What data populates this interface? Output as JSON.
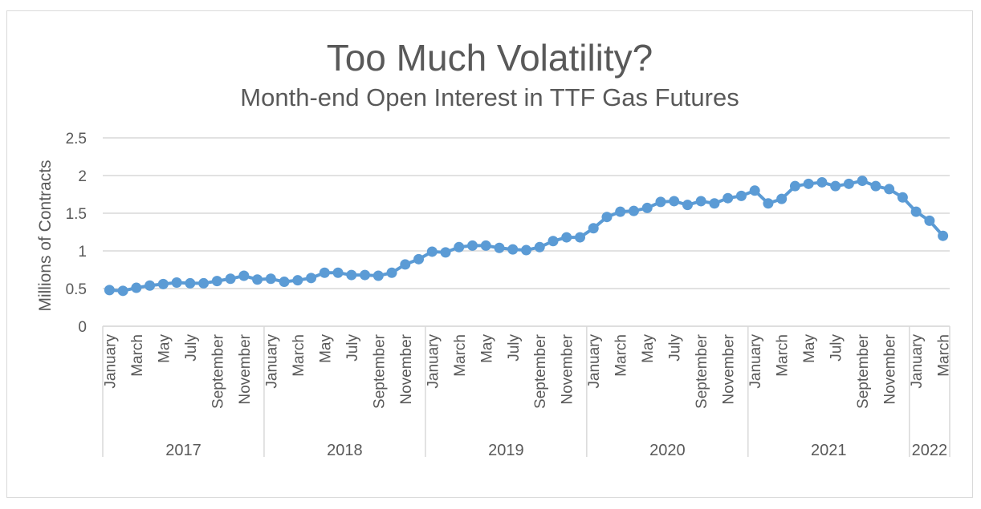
{
  "chart_data": {
    "type": "line",
    "title": "Too Much Volatility?",
    "subtitle": "Month-end Open Interest in TTF Gas Futures",
    "xlabel": "",
    "ylabel": "Millions of Contracts",
    "ylim": [
      0,
      2.5
    ],
    "yticks": [
      "0",
      "0.5",
      "1",
      "1.5",
      "2",
      "2.5"
    ],
    "grid": true,
    "legend": "none",
    "color": "#5b9bd5",
    "groups": [
      {
        "year": "2017",
        "tick_labels": [
          "January",
          "March",
          "May",
          "July",
          "September",
          "November"
        ],
        "values": [
          0.48,
          0.47,
          0.51,
          0.54,
          0.56,
          0.58,
          0.57,
          0.57,
          0.6,
          0.63,
          0.67,
          0.62
        ]
      },
      {
        "year": "2018",
        "tick_labels": [
          "January",
          "March",
          "May",
          "July",
          "September",
          "November"
        ],
        "values": [
          0.63,
          0.59,
          0.61,
          0.64,
          0.71,
          0.71,
          0.68,
          0.68,
          0.67,
          0.71,
          0.82,
          0.89
        ]
      },
      {
        "year": "2019",
        "tick_labels": [
          "January",
          "March",
          "May",
          "July",
          "September",
          "November"
        ],
        "values": [
          0.99,
          0.98,
          1.05,
          1.07,
          1.07,
          1.04,
          1.02,
          1.01,
          1.05,
          1.13,
          1.18,
          1.18
        ]
      },
      {
        "year": "2020",
        "tick_labels": [
          "January",
          "March",
          "May",
          "July",
          "September",
          "November"
        ],
        "values": [
          1.3,
          1.45,
          1.52,
          1.53,
          1.57,
          1.65,
          1.66,
          1.61,
          1.66,
          1.63,
          1.7,
          1.73
        ]
      },
      {
        "year": "2021",
        "tick_labels": [
          "January",
          "March",
          "May",
          "July",
          "September",
          "November"
        ],
        "values": [
          1.8,
          1.63,
          1.69,
          1.86,
          1.89,
          1.91,
          1.86,
          1.89,
          1.93,
          1.86,
          1.82,
          1.71
        ]
      },
      {
        "year": "2022",
        "tick_labels": [
          "January",
          "March"
        ],
        "values": [
          1.52,
          1.4,
          1.2
        ]
      }
    ]
  }
}
